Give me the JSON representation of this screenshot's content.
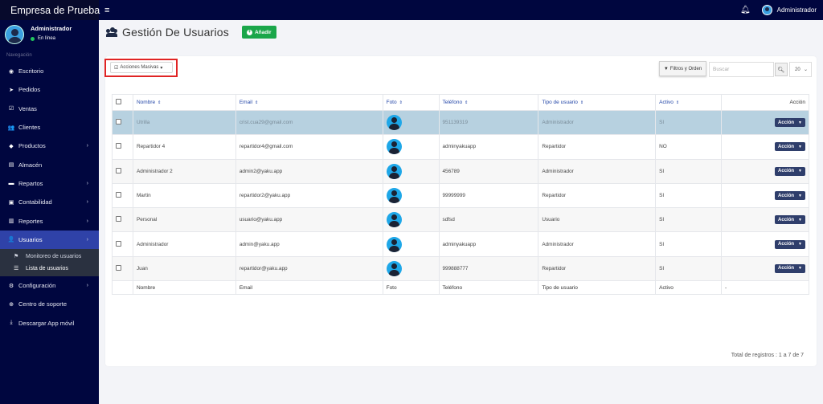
{
  "app": {
    "brand": "Empresa de Prueba",
    "menu_icon": "hamburger-icon",
    "bell_icon": "bell-icon",
    "user": "Administrador"
  },
  "profile": {
    "name": "Administrador",
    "status": "En línea",
    "status_color": "#22c55e"
  },
  "nav": {
    "header": "Navegación",
    "items": [
      {
        "label": "Escritorio",
        "icon": "dashboard-icon",
        "glyph": "◉"
      },
      {
        "label": "Pedidos",
        "icon": "paper-plane-icon",
        "glyph": "➤"
      },
      {
        "label": "Ventas",
        "icon": "check-square-icon",
        "glyph": "☑"
      },
      {
        "label": "Clientes",
        "icon": "users-icon",
        "glyph": "👥"
      },
      {
        "label": "Productos",
        "icon": "box-icon",
        "glyph": "◆",
        "chev": "›"
      },
      {
        "label": "Almacén",
        "icon": "file-icon",
        "glyph": "▤"
      },
      {
        "label": "Repartos",
        "icon": "truck-icon",
        "glyph": "▬",
        "chev": "›"
      },
      {
        "label": "Contabilidad",
        "icon": "money-icon",
        "glyph": "▣",
        "chev": "›"
      },
      {
        "label": "Reportes",
        "icon": "chart-icon",
        "glyph": "▥",
        "chev": "›"
      },
      {
        "label": "Usuarios",
        "icon": "user-icon",
        "glyph": "👤",
        "chev": "›"
      }
    ],
    "sub_items": [
      {
        "label": "Monitoreo de usuarios",
        "icon": "flag-icon",
        "glyph": "⚑"
      },
      {
        "label": "Lista de usuarios",
        "icon": "list-icon",
        "glyph": "☰"
      }
    ],
    "items_after": [
      {
        "label": "Configuración",
        "icon": "cogs-icon",
        "glyph": "⚙",
        "chev": "›"
      },
      {
        "label": "Centro de soporte",
        "icon": "support-icon",
        "glyph": "⊕"
      },
      {
        "label": "Descargar App móvil",
        "icon": "download-icon",
        "glyph": "⤓"
      }
    ]
  },
  "page": {
    "title": "Gestión De Usuarios",
    "add_label": "Añadir",
    "add_color": "#1aa64a"
  },
  "toolbar": {
    "bulk_label": "Acciones Masivas",
    "filters_label": "Filtros y Orden",
    "search_placeholder": "Buscar",
    "page_size": "20"
  },
  "table": {
    "headers": [
      "Nombre",
      "Email",
      "Foto",
      "Teléfono",
      "Tipo de usuario",
      "Activo",
      "Acción"
    ],
    "footer": [
      "Nombre",
      "Email",
      "Foto",
      "Teléfono",
      "Tipo de usuario",
      "Activo",
      "-"
    ],
    "action_label": "Acción",
    "rows": [
      {
        "name": "Utrilla",
        "email": "crist.cua29@gmail.com",
        "phone": "951139319",
        "type": "Administrador",
        "active": "SI"
      },
      {
        "name": "Repartidor 4",
        "email": "repartidor4@gmail.com",
        "phone": "adminyakuapp",
        "type": "Repartidor",
        "active": "NO"
      },
      {
        "name": "Administrador 2",
        "email": "admin2@yaku.app",
        "phone": "456789",
        "type": "Administrador",
        "active": "SI"
      },
      {
        "name": "Martin",
        "email": "repartidor2@yaku.app",
        "phone": "99999999",
        "type": "Repartidor",
        "active": "SI"
      },
      {
        "name": "Personal",
        "email": "usuario@yaku.app",
        "phone": "sdfsd",
        "type": "Usuario",
        "active": "SI"
      },
      {
        "name": "Administrador",
        "email": "admin@yaku.app",
        "phone": "adminyakuapp",
        "type": "Administrador",
        "active": "SI"
      },
      {
        "name": "Juan",
        "email": "repartidor@yaku.app",
        "phone": "999888777",
        "type": "Repartidor",
        "active": "SI"
      }
    ]
  },
  "total": "Total de registros : 1 a 7 de 7"
}
